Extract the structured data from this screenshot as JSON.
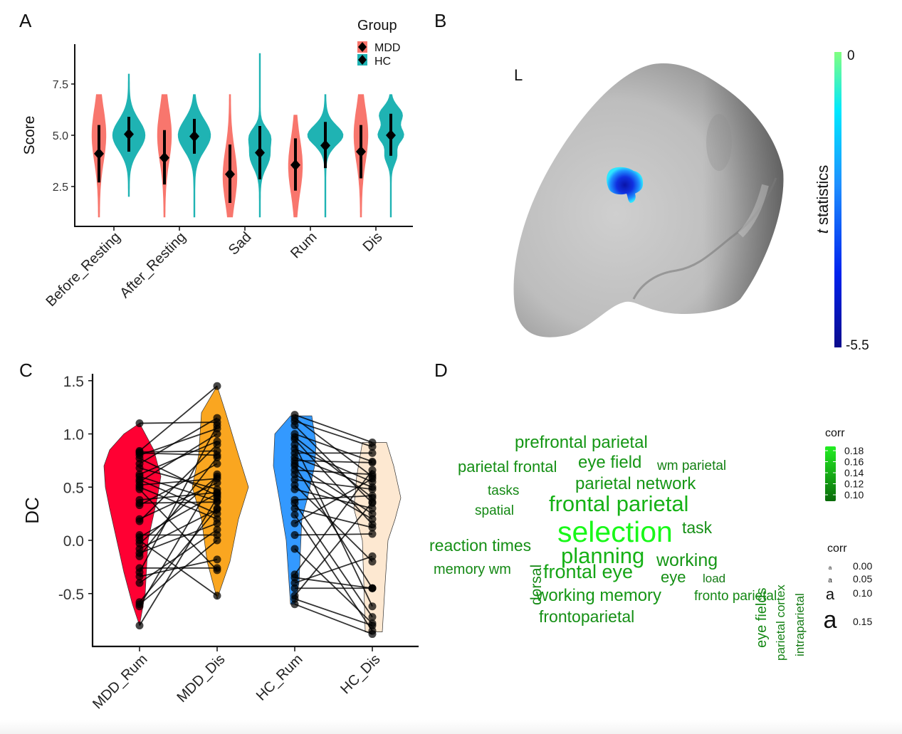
{
  "panels": {
    "a": "A",
    "b": "B",
    "c": "C",
    "d": "D"
  },
  "chart_data": [
    {
      "id": "A",
      "type": "violin",
      "ylabel": "Score",
      "xlabel": "",
      "ylim": [
        1,
        9
      ],
      "yticks": [
        2.5,
        5.0,
        7.5
      ],
      "ytick_labels": [
        "2.5",
        "5.0",
        "7.5"
      ],
      "categories": [
        "Before_Resting",
        "After_Resting",
        "Sad",
        "Rum",
        "Dis"
      ],
      "legend": {
        "title": "Group",
        "position": "top-right",
        "entries": [
          "MDD",
          "HC"
        ]
      },
      "colors": {
        "MDD": "#F8766D",
        "HC": "#1FB3B3"
      },
      "series": [
        {
          "name": "MDD",
          "range": [
            [
              1,
              7
            ],
            [
              1,
              7
            ],
            [
              1,
              7
            ],
            [
              1,
              6
            ],
            [
              1,
              7
            ]
          ],
          "mean": [
            4.1,
            3.9,
            3.1,
            3.55,
            4.2
          ],
          "sd_low": [
            2.7,
            2.6,
            1.7,
            2.3,
            2.9
          ],
          "sd_high": [
            5.5,
            5.25,
            4.55,
            4.85,
            5.5
          ],
          "mode": [
            5.0,
            5.0,
            3.0,
            3.5,
            5.0
          ]
        },
        {
          "name": "HC",
          "range": [
            [
              2,
              8
            ],
            [
              1,
              7
            ],
            [
              1,
              9
            ],
            [
              1,
              7
            ],
            [
              1,
              7
            ]
          ],
          "mean": [
            5.05,
            4.95,
            4.15,
            4.5,
            5.0
          ],
          "sd_low": [
            4.2,
            4.1,
            2.85,
            3.4,
            4.0
          ],
          "sd_high": [
            5.9,
            5.8,
            5.45,
            5.65,
            6.05
          ],
          "mode": [
            5.0,
            5.0,
            4.0,
            5.0,
            5.0
          ]
        }
      ]
    },
    {
      "id": "B",
      "type": "heatmap",
      "title": "",
      "hemisphere_label": "L",
      "colorbar": {
        "label_italic": "t",
        "label": " statistics",
        "max_label": "0",
        "min_label": "-5.5",
        "range": [
          -5.5,
          0
        ],
        "colors": [
          "#0a0a8a",
          "#0033ff",
          "#1e90ff",
          "#00e5ff",
          "#7fff7f"
        ]
      },
      "cluster_peak_t": -5.5
    },
    {
      "id": "C",
      "type": "violin",
      "ylabel": "DC",
      "xlabel": "",
      "ylim": [
        -0.95,
        1.55
      ],
      "yticks": [
        -0.5,
        0.0,
        0.5,
        1.0,
        1.5
      ],
      "ytick_labels": [
        "-0.5",
        "0.0",
        "0.5",
        "1.0",
        "1.5"
      ],
      "categories": [
        "MDD_Rum",
        "MDD_Dis",
        "HC_Rum",
        "HC_Dis"
      ],
      "colors": [
        "#FF0033",
        "#FAA620",
        "#3399FF",
        "#FDE8D1"
      ],
      "paired": [
        {
          "from": "MDD_Rum",
          "to": "MDD_Dis",
          "pairs": [
            [
              1.1,
              1.11
            ],
            [
              0.84,
              1.45
            ],
            [
              0.83,
              0.84
            ],
            [
              0.82,
              0.8
            ],
            [
              0.8,
              1.05
            ],
            [
              0.77,
              0.42
            ],
            [
              0.72,
              1.15
            ],
            [
              0.68,
              0.48
            ],
            [
              0.62,
              0.93
            ],
            [
              0.6,
              0.37
            ],
            [
              0.57,
              0.25
            ],
            [
              0.55,
              1.0
            ],
            [
              0.52,
              0.58
            ],
            [
              0.5,
              0.2
            ],
            [
              0.48,
              -0.28
            ],
            [
              0.38,
              0.45
            ],
            [
              0.35,
              0.36
            ],
            [
              0.33,
              0.72
            ],
            [
              0.2,
              0.54
            ],
            [
              0.18,
              0.9
            ],
            [
              0.05,
              0.05
            ],
            [
              0.03,
              0.44
            ],
            [
              0.0,
              -0.52
            ],
            [
              -0.03,
              0.6
            ],
            [
              -0.08,
              0.29
            ],
            [
              -0.12,
              0.16
            ],
            [
              -0.15,
              0.78
            ],
            [
              -0.26,
              -0.26
            ],
            [
              -0.3,
              1.08
            ],
            [
              -0.34,
              -0.18
            ],
            [
              -0.4,
              0.1
            ],
            [
              -0.58,
              0.3
            ],
            [
              -0.6,
              0.0
            ],
            [
              -0.62,
              0.62
            ],
            [
              -0.8,
              0.4
            ]
          ]
        },
        {
          "from": "HC_Rum",
          "to": "HC_Dis",
          "pairs": [
            [
              1.18,
              0.92
            ],
            [
              1.15,
              0.6
            ],
            [
              1.12,
              0.88
            ],
            [
              1.08,
              0.35
            ],
            [
              1.0,
              0.74
            ],
            [
              0.97,
              0.4
            ],
            [
              0.95,
              0.15
            ],
            [
              0.9,
              -0.62
            ],
            [
              0.86,
              0.55
            ],
            [
              0.82,
              0.82
            ],
            [
              0.78,
              0.5
            ],
            [
              0.75,
              0.73
            ],
            [
              0.72,
              0.25
            ],
            [
              0.7,
              -0.45
            ],
            [
              0.66,
              0.62
            ],
            [
              0.62,
              0.2
            ],
            [
              0.57,
              0.48
            ],
            [
              0.52,
              -0.2
            ],
            [
              0.48,
              0.3
            ],
            [
              0.38,
              0.42
            ],
            [
              0.35,
              -0.72
            ],
            [
              0.3,
              0.12
            ],
            [
              0.24,
              -0.85
            ],
            [
              0.16,
              0.58
            ],
            [
              0.05,
              0.06
            ],
            [
              -0.08,
              -0.78
            ],
            [
              -0.32,
              0.66
            ],
            [
              -0.35,
              -0.45
            ],
            [
              -0.4,
              -0.15
            ],
            [
              -0.45,
              -0.45
            ],
            [
              -0.52,
              0.36
            ],
            [
              -0.55,
              -0.8
            ],
            [
              -0.6,
              -0.88
            ]
          ]
        }
      ]
    },
    {
      "id": "D",
      "type": "wordcloud",
      "legend_color": {
        "title": "corr",
        "ticks": [
          "0.18",
          "0.16",
          "0.14",
          "0.12",
          "0.10"
        ],
        "range": [
          0.09,
          0.185
        ],
        "colors": [
          "#0a6a0a",
          "#22ee22"
        ]
      },
      "legend_size": {
        "title": "corr",
        "glyph": "a",
        "entries": [
          "0.00",
          "0.05",
          "0.10",
          "0.15"
        ]
      },
      "words": [
        {
          "text": "prefrontal parietal",
          "corr": 0.11
        },
        {
          "text": "parietal frontal",
          "corr": 0.105
        },
        {
          "text": "eye field",
          "corr": 0.11
        },
        {
          "text": "wm parietal",
          "corr": 0.095
        },
        {
          "text": "parietal network",
          "corr": 0.11
        },
        {
          "text": "tasks",
          "corr": 0.1
        },
        {
          "text": "dorsal",
          "corr": 0.1
        },
        {
          "text": "frontal parietal",
          "corr": 0.13
        },
        {
          "text": "spatial",
          "corr": 0.1
        },
        {
          "text": "selection",
          "corr": 0.18
        },
        {
          "text": "task",
          "corr": 0.105
        },
        {
          "text": "eye fields",
          "corr": 0.1
        },
        {
          "text": "parietal cortex",
          "corr": 0.095
        },
        {
          "text": "intraparietal",
          "corr": 0.09
        },
        {
          "text": "reaction times",
          "corr": 0.105
        },
        {
          "text": "planning",
          "corr": 0.13
        },
        {
          "text": "working",
          "corr": 0.11
        },
        {
          "text": "memory wm",
          "corr": 0.1
        },
        {
          "text": "frontal eye",
          "corr": 0.12
        },
        {
          "text": "eye",
          "corr": 0.105
        },
        {
          "text": "load",
          "corr": 0.09
        },
        {
          "text": "working memory",
          "corr": 0.11
        },
        {
          "text": "fronto parietal",
          "corr": 0.1
        },
        {
          "text": "frontoparietal",
          "corr": 0.105
        }
      ]
    }
  ]
}
